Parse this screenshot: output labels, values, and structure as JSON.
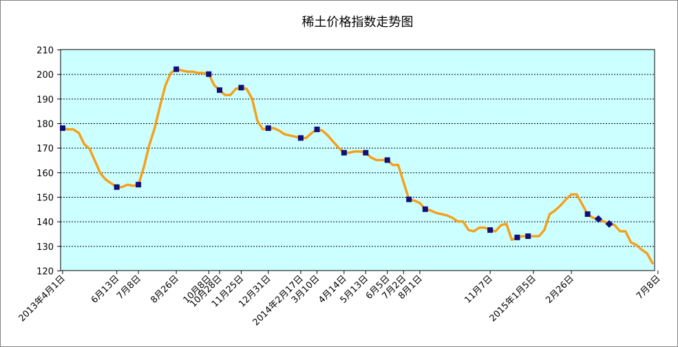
{
  "chart_data": {
    "type": "line",
    "title": "稀土价格指数走势图",
    "xlabel": "",
    "ylabel": "",
    "ylim": [
      120,
      210
    ],
    "yticks": [
      120,
      130,
      140,
      150,
      160,
      170,
      180,
      190,
      200,
      210
    ],
    "grid": true,
    "legend": "none",
    "colors": {
      "line": "#f5a01a",
      "marker": "#10107a",
      "plot_bg": "#ccffff",
      "grid": "#000000"
    },
    "x_tick_labels": [
      {
        "i": 0,
        "label": "2013年4月1日"
      },
      {
        "i": 10,
        "label": "6月13日"
      },
      {
        "i": 14,
        "label": "7月8日"
      },
      {
        "i": 21,
        "label": "8月26日"
      },
      {
        "i": 27,
        "label": "10月8日"
      },
      {
        "i": 29,
        "label": "10月28日"
      },
      {
        "i": 33,
        "label": "11月25日"
      },
      {
        "i": 38,
        "label": "12月31日"
      },
      {
        "i": 44,
        "label": "2014年2月17日"
      },
      {
        "i": 47,
        "label": "3月10日"
      },
      {
        "i": 52,
        "label": "4月14日"
      },
      {
        "i": 56,
        "label": "5月13日"
      },
      {
        "i": 60,
        "label": "6月5日"
      },
      {
        "i": 63,
        "label": "7月2日"
      },
      {
        "i": 66,
        "label": "8月1日"
      },
      {
        "i": 79,
        "label": "11月7日"
      },
      {
        "i": 87,
        "label": "2015年1月5日"
      },
      {
        "i": 94,
        "label": "2月26日"
      },
      {
        "i": 110,
        "label": "7月8日"
      }
    ],
    "series": [
      {
        "values": [
          178,
          177.5,
          177.5,
          176,
          171.5,
          169.5,
          164.5,
          159.5,
          157,
          155.5,
          154,
          154,
          155,
          154.5,
          155,
          162,
          171,
          178,
          187,
          195.5,
          200.5,
          202,
          201.5,
          201,
          201,
          200.5,
          200.5,
          200,
          195.5,
          193.5,
          191.5,
          191.5,
          194,
          194.5,
          194,
          190,
          181,
          177.5,
          178,
          178,
          177,
          175.5,
          175,
          174.5,
          174,
          174,
          176,
          177.5,
          177,
          175,
          172.5,
          170,
          168,
          168,
          168.5,
          168.5,
          168,
          166,
          165,
          165,
          165,
          163,
          163,
          156,
          149,
          148.5,
          147.5,
          145,
          144.5,
          143.5,
          143,
          142.5,
          141.5,
          140,
          140,
          136.5,
          136,
          137.5,
          137.5,
          136.5,
          136,
          138.5,
          139,
          132.5,
          133.5,
          134,
          134,
          134,
          134,
          136.5,
          143,
          144.5,
          146.5,
          149,
          151,
          151,
          147,
          143,
          141.5,
          141,
          140,
          139,
          138.5,
          136,
          136,
          131.5,
          130.5,
          128.5,
          127,
          123
        ],
        "markers": [
          {
            "i": 0,
            "shape": "square"
          },
          {
            "i": 10,
            "shape": "square"
          },
          {
            "i": 14,
            "shape": "square"
          },
          {
            "i": 21,
            "shape": "square"
          },
          {
            "i": 27,
            "shape": "square"
          },
          {
            "i": 29,
            "shape": "square"
          },
          {
            "i": 33,
            "shape": "square"
          },
          {
            "i": 38,
            "shape": "square"
          },
          {
            "i": 44,
            "shape": "square"
          },
          {
            "i": 47,
            "shape": "square"
          },
          {
            "i": 52,
            "shape": "square"
          },
          {
            "i": 56,
            "shape": "square"
          },
          {
            "i": 60,
            "shape": "square"
          },
          {
            "i": 64,
            "shape": "square"
          },
          {
            "i": 67,
            "shape": "square"
          },
          {
            "i": 79,
            "shape": "square"
          },
          {
            "i": 84,
            "shape": "square"
          },
          {
            "i": 86,
            "shape": "square"
          },
          {
            "i": 97,
            "shape": "square"
          },
          {
            "i": 99,
            "shape": "diamond"
          },
          {
            "i": 101,
            "shape": "diamond"
          }
        ]
      }
    ]
  }
}
